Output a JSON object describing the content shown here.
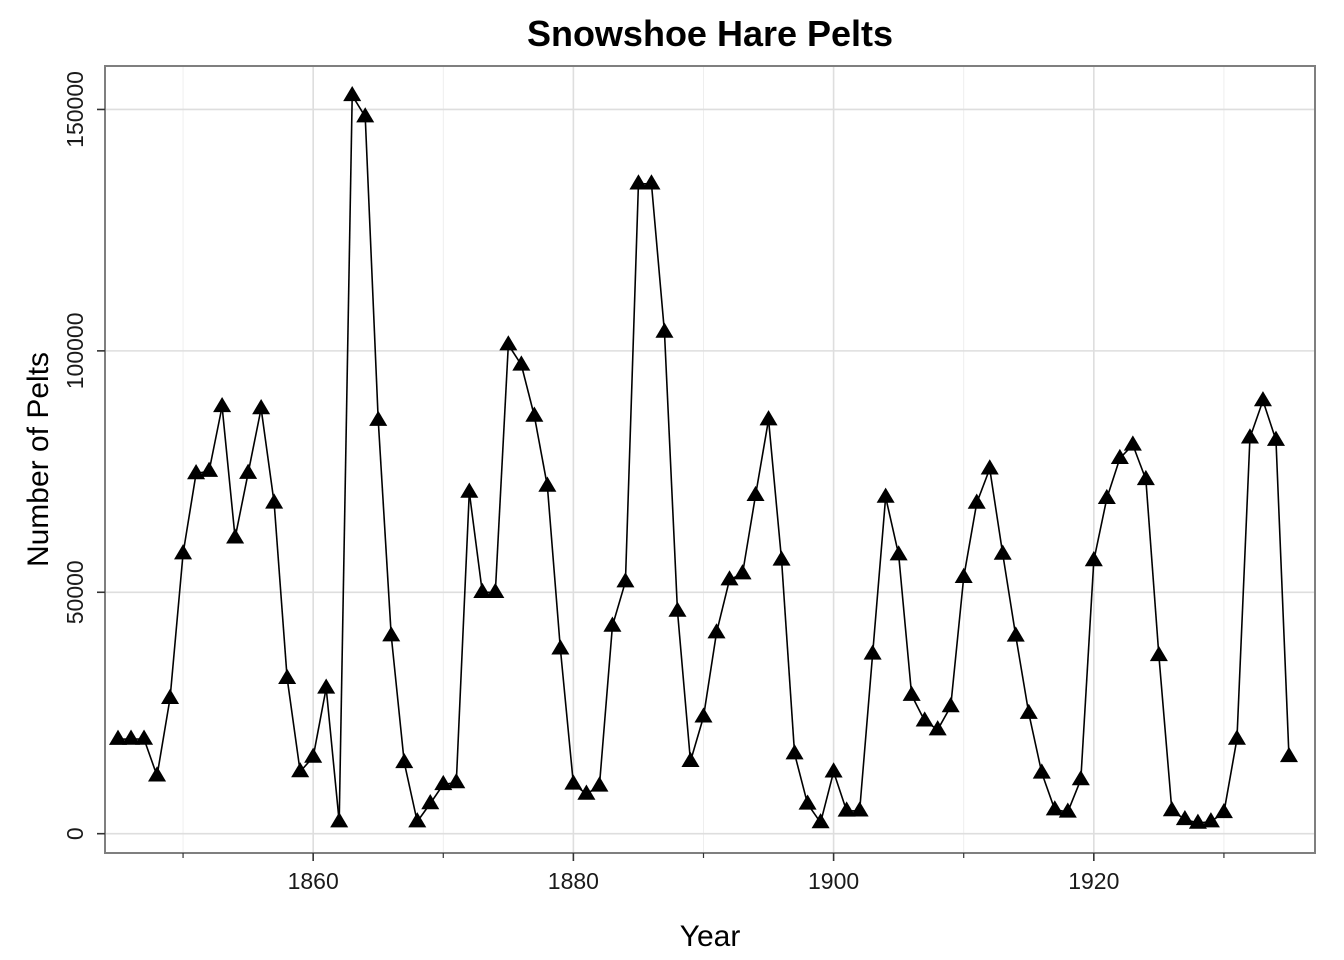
{
  "chart_data": {
    "type": "line",
    "title": "Snowshoe Hare Pelts",
    "xlabel": "Year",
    "ylabel": "Number of Pelts",
    "xlim": [
      1844,
      1937
    ],
    "ylim": [
      -4000,
      159000
    ],
    "x_ticks": [
      1860,
      1880,
      1900,
      1920
    ],
    "x_minor_ticks": [
      1850,
      1870,
      1890,
      1910,
      1930
    ],
    "y_ticks": [
      0,
      50000,
      100000,
      150000
    ],
    "tick_labels": {
      "x": [
        "1860",
        "1880",
        "1900",
        "1920"
      ],
      "y": [
        "0",
        "50000",
        "100000",
        "150000"
      ]
    },
    "grid": true,
    "marker": "triangle",
    "line_color": "#000000",
    "marker_color": "#000000",
    "grid_color": "#dedede",
    "series": [
      {
        "x": [
          1845,
          1846,
          1847,
          1848,
          1849,
          1850,
          1851,
          1852,
          1853,
          1854,
          1855,
          1856,
          1857,
          1858,
          1859,
          1860,
          1861,
          1862,
          1863,
          1864,
          1865,
          1866,
          1867,
          1868,
          1869,
          1870,
          1871,
          1872,
          1873,
          1874,
          1875,
          1876,
          1877,
          1878,
          1879,
          1880,
          1881,
          1882,
          1883,
          1884,
          1885,
          1886,
          1887,
          1888,
          1889,
          1890,
          1891,
          1892,
          1893,
          1894,
          1895,
          1896,
          1897,
          1898,
          1899,
          1900,
          1901,
          1902,
          1903,
          1904,
          1905,
          1906,
          1907,
          1908,
          1909,
          1910,
          1911,
          1912,
          1913,
          1914,
          1915,
          1916,
          1917,
          1918,
          1919,
          1920,
          1921,
          1922,
          1923,
          1924,
          1925,
          1926,
          1927,
          1928,
          1929,
          1930,
          1931,
          1932,
          1933,
          1934,
          1935
        ],
        "y": [
          19580,
          19600,
          19610,
          11990,
          28040,
          58000,
          74600,
          75090,
          88480,
          61280,
          74670,
          88060,
          68510,
          32190,
          12860,
          15870,
          30180,
          2500,
          152900,
          148500,
          85640,
          41000,
          14750,
          2500,
          6250,
          10210,
          10600,
          70760,
          50000,
          50000,
          101270,
          97100,
          86510,
          72000,
          38300,
          10310,
          8220,
          9900,
          43010,
          52190,
          134600,
          134600,
          103900,
          46100,
          15000,
          24200,
          41630,
          52600,
          53860,
          70080,
          85760,
          56690,
          16570,
          6160,
          2300,
          12820,
          4720,
          4730,
          37220,
          69720,
          57780,
          28680,
          23370,
          21540,
          26340,
          53100,
          68480,
          75580,
          57920,
          40970,
          24950,
          12590,
          4970,
          4500,
          11210,
          56580,
          69460,
          77740,
          80530,
          73380,
          36930,
          4800,
          2950,
          2200,
          2500,
          4400,
          19600,
          82000,
          89700,
          81500,
          16000
        ]
      }
    ]
  }
}
